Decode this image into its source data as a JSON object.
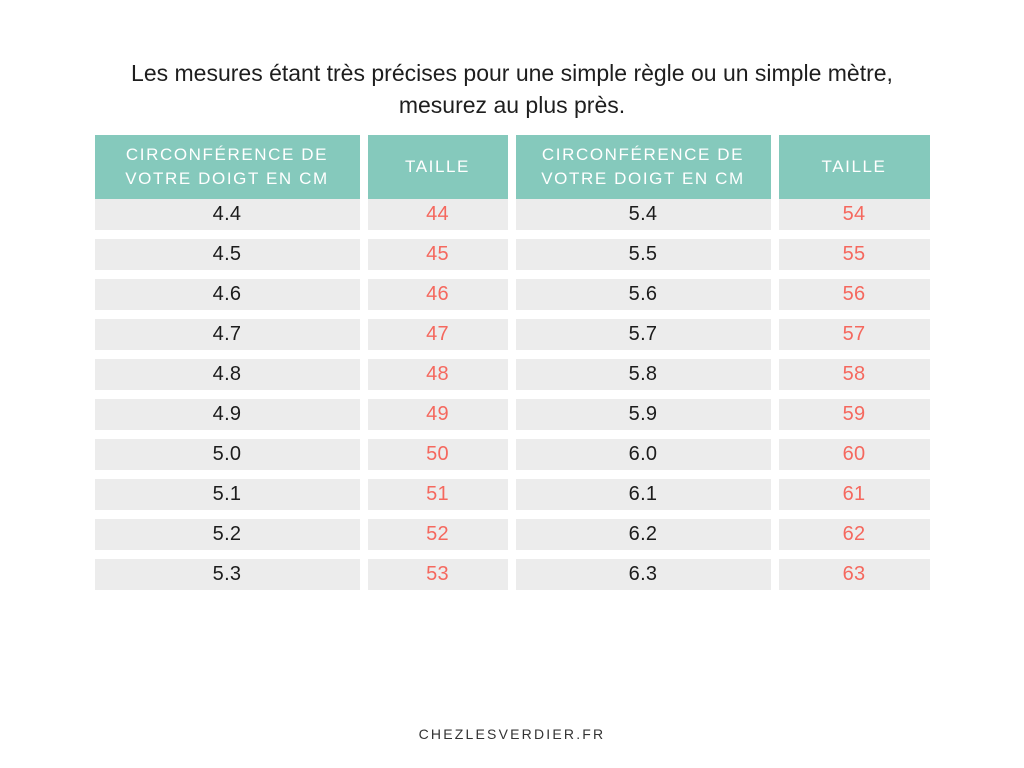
{
  "title": {
    "line1": "Les mesures étant très précises pour une simple règle ou un simple mètre,",
    "line2": "mesurez au plus près."
  },
  "footer": {
    "site": "CHEZLESVERDIER.FR"
  },
  "colors": {
    "header_teal": "#85c9bc",
    "row_gray": "#ececec",
    "taille_red": "#f5685e",
    "text_dark": "#1c1c1c",
    "background": "#ffffff"
  },
  "chart_data": {
    "type": "table",
    "title": "Les mesures étant très précises pour une simple règle ou un simple mètre, mesurez au plus près.",
    "columns": [
      "CIRCONFÉRENCE DE VOTRE DOIGT EN CM",
      "TAILLE",
      "CIRCONFÉRENCE DE VOTRE DOIGT EN CM",
      "TAILLE"
    ],
    "rows": [
      [
        "4.4",
        "44",
        "5.4",
        "54"
      ],
      [
        "4.5",
        "45",
        "5.5",
        "55"
      ],
      [
        "4.6",
        "46",
        "5.6",
        "56"
      ],
      [
        "4.7",
        "47",
        "5.7",
        "57"
      ],
      [
        "4.8",
        "48",
        "5.8",
        "58"
      ],
      [
        "4.9",
        "49",
        "5.9",
        "59"
      ],
      [
        "5.0",
        "50",
        "6.0",
        "60"
      ],
      [
        "5.1",
        "51",
        "6.1",
        "61"
      ],
      [
        "5.2",
        "52",
        "6.2",
        "62"
      ],
      [
        "5.3",
        "53",
        "6.3",
        "63"
      ]
    ]
  }
}
